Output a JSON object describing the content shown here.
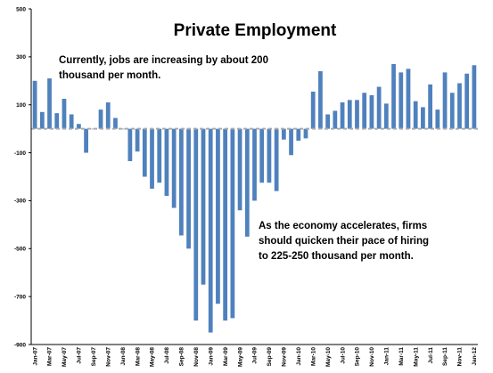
{
  "chart_data": {
    "type": "bar",
    "title": "Private Employment",
    "xlabel": "",
    "ylabel": "",
    "ylim": [
      -900,
      500
    ],
    "yticks": [
      500,
      300,
      100,
      -100,
      -300,
      -500,
      -700,
      -900
    ],
    "grid": false,
    "legend": "none",
    "bar_color": "#4f81bd",
    "axis_color": "#000000",
    "zero_line_color": "#aaaaaa",
    "categories": [
      "Jan-07",
      "Feb-07",
      "Mar-07",
      "Apr-07",
      "May-07",
      "Jun-07",
      "Jul-07",
      "Aug-07",
      "Sep-07",
      "Oct-07",
      "Nov-07",
      "Dec-07",
      "Jan-08",
      "Feb-08",
      "Mar-08",
      "Apr-08",
      "May-08",
      "Jun-08",
      "Jul-08",
      "Aug-08",
      "Sep-08",
      "Oct-08",
      "Nov-08",
      "Dec-08",
      "Jan-09",
      "Feb-09",
      "Mar-09",
      "Apr-09",
      "May-09",
      "Jun-09",
      "Jul-09",
      "Aug-09",
      "Sep-09",
      "Oct-09",
      "Nov-09",
      "Dec-09",
      "Jan-10",
      "Feb-10",
      "Mar-10",
      "Apr-10",
      "May-10",
      "Jun-10",
      "Jul-10",
      "Aug-10",
      "Sep-10",
      "Oct-10",
      "Nov-10",
      "Dec-10",
      "Jan-11",
      "Feb-11",
      "Mar-11",
      "Apr-11",
      "May-11",
      "Jun-11",
      "Jul-11",
      "Aug-11",
      "Sep-11",
      "Oct-11",
      "Nov-11",
      "Dec-11",
      "Jan-12"
    ],
    "xtick_labels": [
      "Jan-07",
      "Mar-07",
      "May-07",
      "Jul-07",
      "Sep-07",
      "Nov-07",
      "Jan-08",
      "Mar-08",
      "May-08",
      "Jul-08",
      "Sep-08",
      "Nov-08",
      "Jan-09",
      "Mar-09",
      "May-09",
      "Jul-09",
      "Sep-09",
      "Nov-09",
      "Jan-10",
      "Mar-10",
      "May-10",
      "Jul-10",
      "Sep-10",
      "Nov-10",
      "Jan-11",
      "Mar-11",
      "May-11",
      "Jul-11",
      "Sep-11",
      "Nov-11",
      "Jan-12"
    ],
    "values": [
      200,
      70,
      210,
      65,
      125,
      60,
      20,
      -100,
      0,
      80,
      110,
      45,
      0,
      -135,
      -95,
      -200,
      -250,
      -225,
      -280,
      -330,
      -445,
      -500,
      -800,
      -650,
      -850,
      -730,
      -800,
      -790,
      -340,
      -450,
      -300,
      -225,
      -225,
      -260,
      -45,
      -110,
      -50,
      -40,
      155,
      240,
      60,
      75,
      110,
      120,
      120,
      150,
      140,
      175,
      105,
      270,
      235,
      250,
      115,
      90,
      185,
      80,
      235,
      150,
      190,
      230,
      265
    ],
    "annotations": [
      "Currently, jobs are increasing by about 200",
      "thousand per month.",
      "As the economy accelerates, firms",
      "should quicken their pace of hiring",
      "to 225-250 thousand per month."
    ]
  }
}
